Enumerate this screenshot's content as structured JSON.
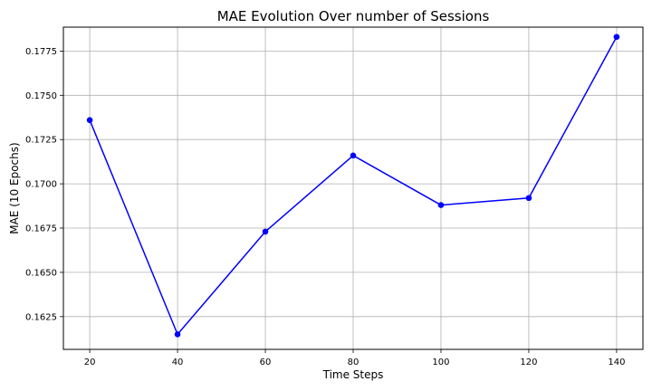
{
  "chart_data": {
    "type": "line",
    "title": "MAE Evolution Over number of Sessions",
    "xlabel": "Time Steps",
    "ylabel": "MAE (10 Epochs)",
    "x": [
      20,
      40,
      60,
      80,
      100,
      120,
      140
    ],
    "series": [
      {
        "values": [
          0.1736,
          0.1615,
          0.1673,
          0.1716,
          0.1688,
          0.1692,
          0.1783
        ]
      }
    ],
    "xlim": [
      14,
      146
    ],
    "ylim": [
      0.16065,
      0.17885
    ],
    "xticks": [
      20,
      40,
      60,
      80,
      100,
      120,
      140
    ],
    "xtick_labels": [
      "20",
      "40",
      "60",
      "80",
      "100",
      "120",
      "140"
    ],
    "yticks": [
      0.1625,
      0.165,
      0.1675,
      0.17,
      0.1725,
      0.175,
      0.1775
    ],
    "ytick_labels": [
      "0.1625",
      "0.1650",
      "0.1675",
      "0.1700",
      "0.1725",
      "0.1750",
      "0.1775"
    ],
    "grid": true,
    "colors": {
      "line": "#0000ff",
      "marker": "#0000ff",
      "grid": "#b0b0b0",
      "axis": "#000000"
    }
  }
}
